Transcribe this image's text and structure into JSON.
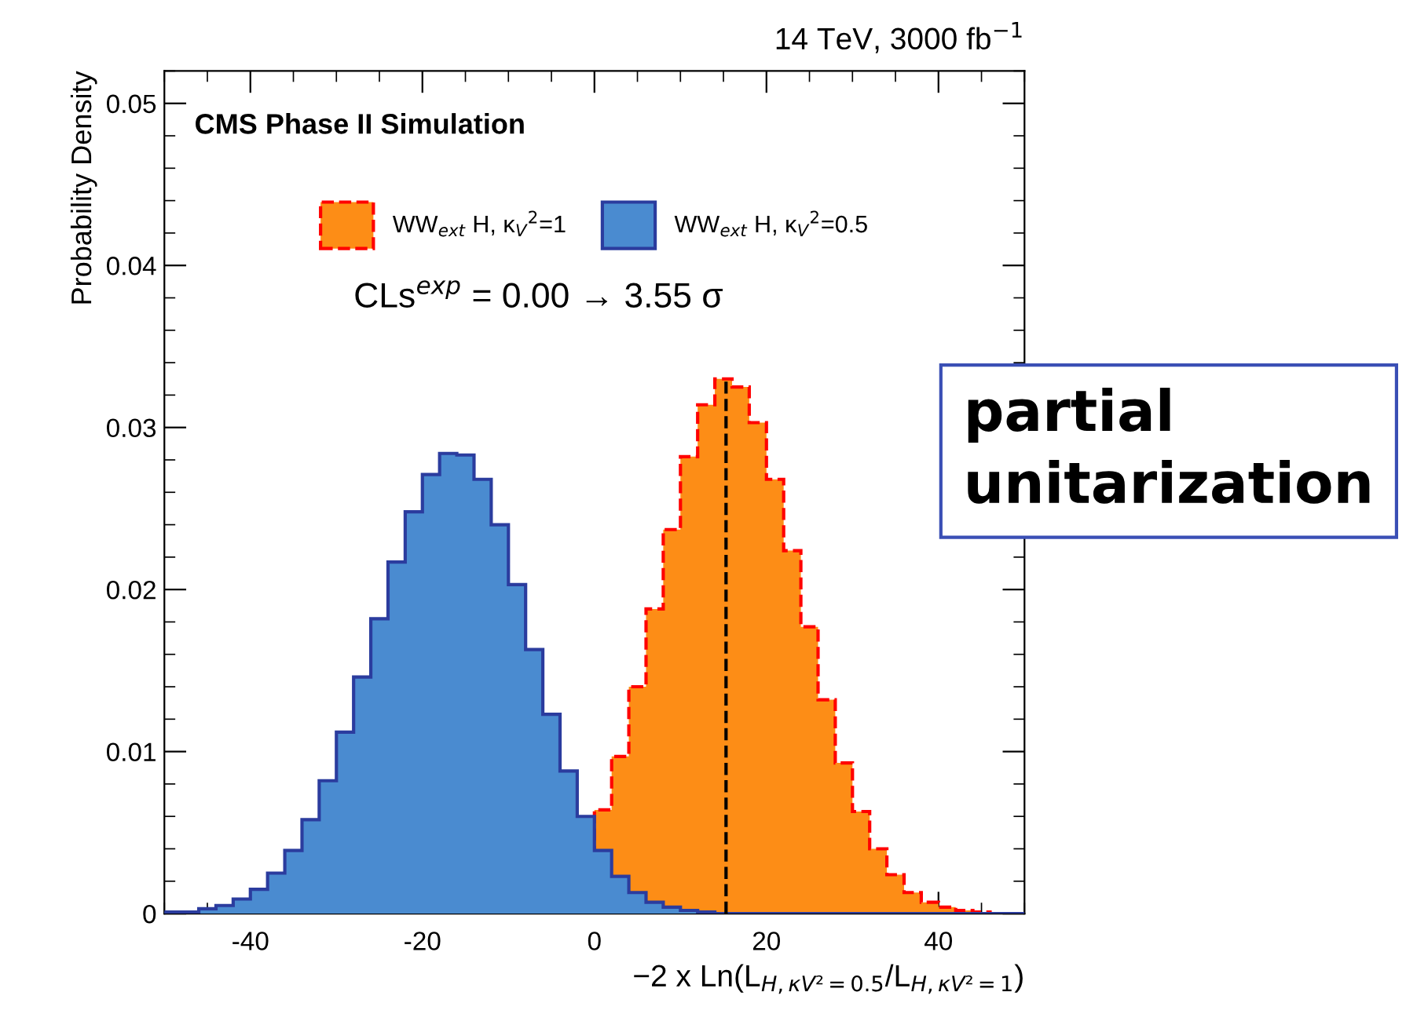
{
  "chart_data": {
    "type": "histogram",
    "title": "CMS Phase II Simulation",
    "subtitle": "14 TeV, 3000 fb$^{−1}$",
    "xlabel": "−2 x Ln(L$_{H,κV²=0.5}$/L$_{H,κV²=1}$)",
    "ylabel": "Probability Density",
    "bins": [
      -50,
      -48,
      -46,
      -44,
      -42,
      -40,
      -38,
      -36,
      -34,
      -32,
      -30,
      -28,
      -26,
      -24,
      -22,
      -20,
      -18,
      -16,
      -14,
      -12,
      -10,
      -8,
      -6,
      -4,
      -2,
      0,
      2,
      4,
      6,
      8,
      10,
      12,
      14,
      16,
      18,
      20,
      22,
      24,
      26,
      28,
      30,
      32,
      34,
      36,
      38,
      40,
      42,
      44,
      46,
      48,
      50
    ],
    "series": [
      {
        "name": "WW$_{ext}$ H, κ$_{V}$$^{2}$=1",
        "color": "#fd8d16",
        "line_style": "dashed",
        "values": [
          0,
          0,
          0,
          0,
          0,
          0,
          0,
          0,
          0,
          0,
          0,
          0,
          0,
          0,
          0,
          0,
          0,
          0,
          0,
          0,
          0,
          0,
          0,
          0,
          0,
          0.0064,
          0.0097,
          0.014,
          0.0188,
          0.0237,
          0.0282,
          0.0314,
          0.033,
          0.0325,
          0.0303,
          0.0268,
          0.0224,
          0.0177,
          0.0132,
          0.0093,
          0.0063,
          0.004,
          0.0024,
          0.0013,
          0.0007,
          0.0004,
          0.0002,
          0.0001,
          0,
          0
        ]
      },
      {
        "name": "WW$_{ext}$ H, κ$_{V}$$^{2}$=0.5",
        "color": "#4a8bd0",
        "line_style": "solid",
        "values": [
          0.0001,
          0.0001,
          0.0003,
          0.0005,
          0.0009,
          0.0015,
          0.0025,
          0.0039,
          0.0058,
          0.0082,
          0.0112,
          0.0146,
          0.0182,
          0.0217,
          0.0248,
          0.0271,
          0.0284,
          0.0283,
          0.0268,
          0.024,
          0.0203,
          0.0163,
          0.0123,
          0.0088,
          0.006,
          0.0039,
          0.0023,
          0.0013,
          0.0007,
          0.0004,
          0.0002,
          0.0001,
          0,
          0,
          0,
          0,
          0,
          0,
          0,
          0,
          0,
          0,
          0,
          0,
          0,
          0,
          0,
          0,
          0,
          0
        ]
      }
    ],
    "xlim": [
      -50,
      50
    ],
    "xticks": [
      -40,
      -20,
      0,
      20,
      40
    ],
    "ylim": [
      0,
      0.052
    ],
    "yticks": [
      0,
      0.01,
      0.02,
      0.03,
      0.04,
      0.05
    ],
    "ref_lines": [
      {
        "axis": "x",
        "value": 15.3,
        "color": "#000000",
        "line_style": "dashed"
      }
    ],
    "legend": "top",
    "grid": false,
    "annotations": [
      "CLs$^{exp}$ = 0.00 → 3.55 σ",
      "partial\nunitarization"
    ]
  }
}
